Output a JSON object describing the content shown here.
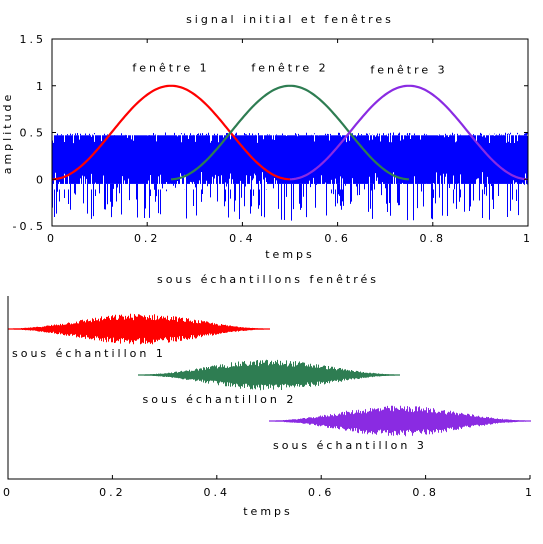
{
  "chart_data": [
    {
      "type": "line",
      "title": "signal initial et fenêtres",
      "xlabel": "temps",
      "ylabel": "amplitude",
      "xlim": [
        0,
        1
      ],
      "ylim": [
        -0.5,
        1.5
      ],
      "xticks": [
        "0",
        "0.2",
        "0.4",
        "0.6",
        "0.8",
        "1"
      ],
      "yticks": [
        "-0.5",
        "0",
        "0.5",
        "1",
        "1.5"
      ],
      "grid": false,
      "signal": {
        "color": "#0000ff",
        "band": [
          -0.05,
          0.47
        ],
        "spikes_min": -0.45,
        "spikes_max": 0.5,
        "x": [
          0,
          1
        ]
      },
      "series": [
        {
          "name": "fenêtre 1",
          "color": "#ff0000",
          "x_range": [
            0,
            0.5
          ],
          "center": 0.25,
          "peak": 1,
          "label_xy": [
            0.25,
            1.15
          ]
        },
        {
          "name": "fenêtre 2",
          "color": "#2e7d52",
          "x_range": [
            0.25,
            0.75
          ],
          "center": 0.5,
          "peak": 1,
          "label_xy": [
            0.5,
            1.15
          ]
        },
        {
          "name": "fenêtre 3",
          "color": "#8a2be2",
          "x_range": [
            0.5,
            1
          ],
          "center": 0.75,
          "peak": 1,
          "label_xy": [
            0.75,
            1.13
          ]
        }
      ]
    },
    {
      "type": "line",
      "title": "sous échantillons fenêtrés",
      "xlabel": "temps",
      "ylabel": "",
      "xlim": [
        0,
        1
      ],
      "xticks": [
        "0",
        "0.2",
        "0.4",
        "0.6",
        "0.8",
        "1"
      ],
      "grid": false,
      "series": [
        {
          "name": "sous échantillon 1",
          "color": "#ff0000",
          "x_range": [
            0,
            0.5
          ],
          "center": 0.25,
          "row": 0
        },
        {
          "name": "sous échantillon 2",
          "color": "#2e7d52",
          "x_range": [
            0.25,
            0.75
          ],
          "center": 0.5,
          "row": 1
        },
        {
          "name": "sous échantillon 3",
          "color": "#8a2be2",
          "x_range": [
            0.5,
            1
          ],
          "center": 0.75,
          "row": 2
        }
      ]
    }
  ]
}
